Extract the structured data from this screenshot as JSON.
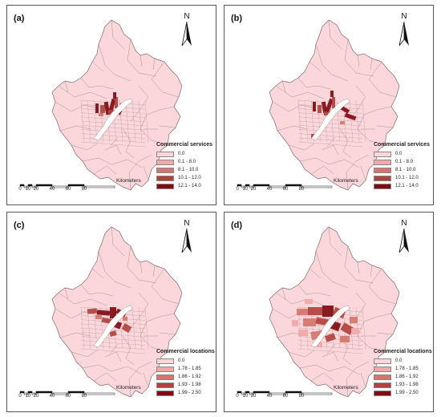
{
  "panels": [
    {
      "id": "a",
      "label": "(a)",
      "legend": {
        "title": "Commercial services",
        "items": [
          {
            "label": "0.0",
            "color": "#fbd7db"
          },
          {
            "label": "0.1 - 8.0",
            "color": "#f0a9a9"
          },
          {
            "label": "8.1 - 10.0",
            "color": "#d4766e"
          },
          {
            "label": "10.1 - 12.0",
            "color": "#b1423d"
          },
          {
            "label": "12.1 - 14.0",
            "color": "#7f0c12"
          }
        ]
      }
    },
    {
      "id": "b",
      "label": "(b)",
      "legend": {
        "title": "Commercial services",
        "items": [
          {
            "label": "0.0",
            "color": "#fbd7db"
          },
          {
            "label": "0.1 - 8.0",
            "color": "#f0a9a9"
          },
          {
            "label": "8.1 - 10.0",
            "color": "#d4766e"
          },
          {
            "label": "10.1 - 12.0",
            "color": "#b1423d"
          },
          {
            "label": "12.1 - 14.0",
            "color": "#7f0c12"
          }
        ]
      }
    },
    {
      "id": "c",
      "label": "(c)",
      "legend": {
        "title": "Commercial locations",
        "items": [
          {
            "label": "0.0",
            "color": "#fbd7db"
          },
          {
            "label": "1.78 - 1.85",
            "color": "#f0a9a9"
          },
          {
            "label": "1.86 - 1.92",
            "color": "#d4766e"
          },
          {
            "label": "1.93 - 1.98",
            "color": "#b1423d"
          },
          {
            "label": "1.99 - 2.50",
            "color": "#7f0c12"
          }
        ]
      }
    },
    {
      "id": "d",
      "label": "(d)",
      "legend": {
        "title": "Commercial locations",
        "items": [
          {
            "label": "0.0",
            "color": "#fbd7db"
          },
          {
            "label": "1.78 - 1.85",
            "color": "#f0a9a9"
          },
          {
            "label": "1.86 - 1.92",
            "color": "#d4766e"
          },
          {
            "label": "1.93 - 1.98",
            "color": "#b1423d"
          },
          {
            "label": "1.99 - 2.50",
            "color": "#7f0c12"
          }
        ]
      }
    }
  ],
  "north_label": "N",
  "scale": {
    "ticks": [
      "0",
      "10",
      "20",
      "40",
      "60",
      "80"
    ],
    "unit": "Kilometers"
  },
  "colors": {
    "base_fill": "#fbd7db",
    "boundary": "#9a8a8c",
    "river": "#ffffff"
  }
}
